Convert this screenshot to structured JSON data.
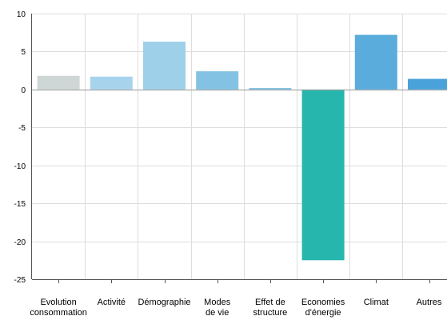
{
  "chart_data": {
    "type": "bar",
    "title": "",
    "xlabel": "",
    "ylabel": "",
    "ylim": [
      -25,
      10
    ],
    "yticks": [
      10,
      5,
      0,
      -5,
      -10,
      -15,
      -20,
      -25
    ],
    "grid": true,
    "categories": [
      [
        "Evolution",
        "consommation"
      ],
      [
        "Activité"
      ],
      [
        "Démographie"
      ],
      [
        "Modes",
        "de vie"
      ],
      [
        "Effet de",
        "structure"
      ],
      [
        "Economies",
        "d'énergie"
      ],
      [
        "Climat"
      ],
      [
        "Autres"
      ]
    ],
    "values": [
      1.8,
      1.7,
      6.3,
      2.4,
      0.2,
      -22.5,
      7.2,
      1.4
    ],
    "colors": [
      "#cfd6d6",
      "#a7d4ec",
      "#9fd0ea",
      "#84c2e4",
      "#84c2e4",
      "#26b6ad",
      "#59acdc",
      "#49a3da"
    ]
  }
}
